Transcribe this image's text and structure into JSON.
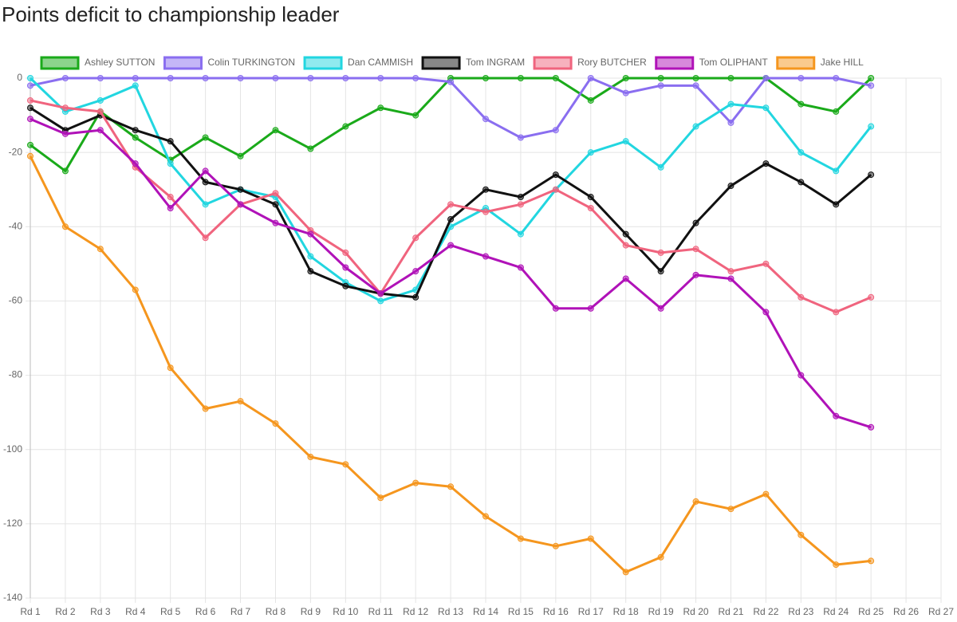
{
  "chart_data": {
    "type": "line",
    "title": "Points deficit to championship leader",
    "categories": [
      "Rd 1",
      "Rd 2",
      "Rd 3",
      "Rd 4",
      "Rd 5",
      "Rd 6",
      "Rd 7",
      "Rd 8",
      "Rd 9",
      "Rd 10",
      "Rd 11",
      "Rd 12",
      "Rd 13",
      "Rd 14",
      "Rd 15",
      "Rd 16",
      "Rd 17",
      "Rd 18",
      "Rd 19",
      "Rd 20",
      "Rd 21",
      "Rd 22",
      "Rd 23",
      "Rd 24",
      "Rd 25",
      "Rd 26",
      "Rd 27"
    ],
    "ylim": [
      -140,
      0
    ],
    "yticks": [
      0,
      -20,
      -40,
      -60,
      -80,
      -100,
      -120,
      -140
    ],
    "grid": true,
    "legend": "top",
    "series": [
      {
        "name": "Ashley SUTTON",
        "color": "#1aaa1a",
        "values": [
          -18,
          -25,
          -9,
          -16,
          -22,
          -16,
          -21,
          -14,
          -19,
          -13,
          -8,
          -10,
          0,
          0,
          0,
          0,
          -6,
          0,
          0,
          0,
          0,
          0,
          -7,
          -9,
          0,
          null,
          null
        ]
      },
      {
        "name": "Colin TURKINGTON",
        "color": "#8a6ef0",
        "values": [
          -2,
          0,
          0,
          0,
          0,
          0,
          0,
          0,
          0,
          0,
          0,
          0,
          -1,
          -11,
          -16,
          -14,
          0,
          -4,
          -2,
          -2,
          -12,
          0,
          0,
          0,
          -2,
          null,
          null
        ]
      },
      {
        "name": "Dan CAMMISH",
        "color": "#22d6e0",
        "values": [
          0,
          -9,
          -6,
          -2,
          -23,
          -34,
          -30,
          -32,
          -48,
          -55,
          -60,
          -57,
          -40,
          -35,
          -42,
          -30,
          -20,
          -17,
          -24,
          -13,
          -7,
          -8,
          -20,
          -25,
          -13,
          null,
          null
        ]
      },
      {
        "name": "Tom INGRAM",
        "color": "#111111",
        "values": [
          -8,
          -14,
          -10,
          -14,
          -17,
          -28,
          -30,
          -34,
          -52,
          -56,
          -58,
          -59,
          -38,
          -30,
          -32,
          -26,
          -32,
          -42,
          -52,
          -39,
          -29,
          -23,
          -28,
          -34,
          -26,
          null,
          null
        ]
      },
      {
        "name": "Rory BUTCHER",
        "color": "#f0647e",
        "values": [
          -6,
          -8,
          -9,
          -24,
          -32,
          -43,
          -34,
          -31,
          -41,
          -47,
          -58,
          -43,
          -34,
          -36,
          -34,
          -30,
          -35,
          -45,
          -47,
          -46,
          -52,
          -50,
          -59,
          -63,
          -59,
          null,
          null
        ]
      },
      {
        "name": "Tom OLIPHANT",
        "color": "#b012b8",
        "values": [
          -11,
          -15,
          -14,
          -23,
          -35,
          -25,
          -34,
          -39,
          -42,
          -51,
          -58,
          -52,
          -45,
          -48,
          -51,
          -62,
          -62,
          -54,
          -62,
          -53,
          -54,
          -63,
          -80,
          -91,
          -94,
          null,
          null
        ]
      },
      {
        "name": "Jake HILL",
        "color": "#f5961e",
        "values": [
          -21,
          -40,
          -46,
          -57,
          -78,
          -89,
          -87,
          -93,
          -102,
          -104,
          -113,
          -109,
          -110,
          -118,
          -124,
          -126,
          -124,
          -133,
          -129,
          -114,
          -116,
          -112,
          -123,
          -131,
          -130,
          null,
          null
        ]
      }
    ]
  }
}
